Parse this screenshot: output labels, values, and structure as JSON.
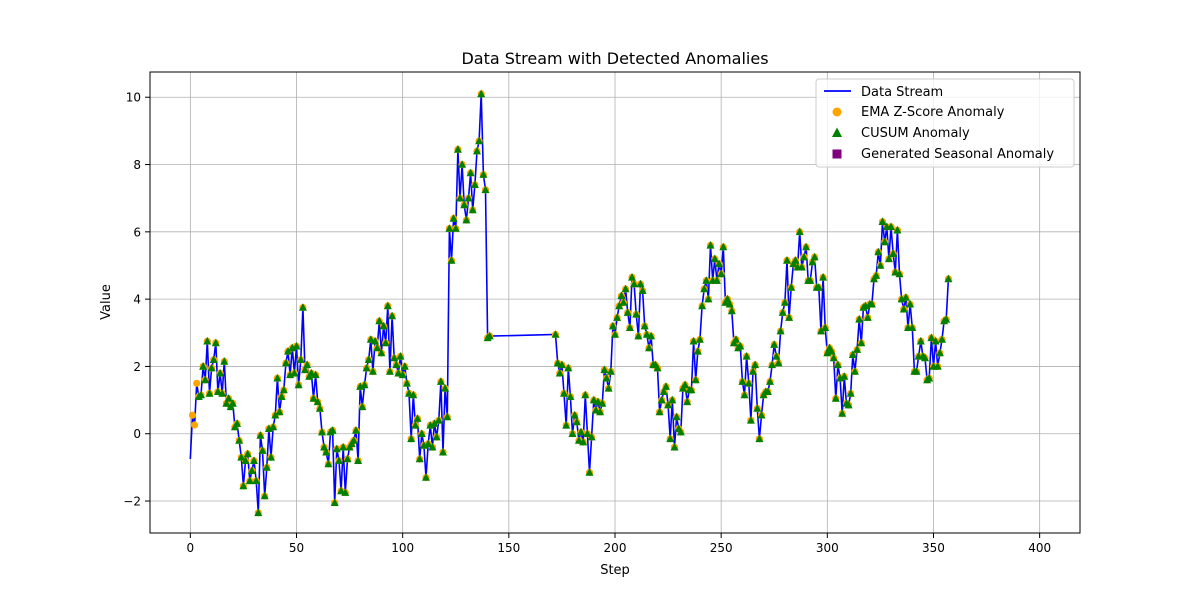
{
  "chart_data": {
    "type": "line",
    "title": "Data Stream with Detected Anomalies",
    "xlabel": "Step",
    "ylabel": "Value",
    "xlim": [
      -19,
      419
    ],
    "ylim": [
      -2.95,
      10.75
    ],
    "xticks": [
      0,
      50,
      100,
      150,
      200,
      250,
      300,
      350,
      400
    ],
    "yticks": [
      -2,
      0,
      2,
      4,
      6,
      8,
      10
    ],
    "grid": true,
    "legend_position": "top-right",
    "colors": {
      "stream": "#0000ff",
      "ema": "#ffa500",
      "cusum": "#008000",
      "seasonal": "#800080",
      "grid": "#b0b0b0"
    },
    "legend": [
      {
        "label": "Data Stream",
        "marker": "line",
        "color": "#0000ff"
      },
      {
        "label": "EMA Z-Score Anomaly",
        "marker": "circle",
        "color": "#ffa500"
      },
      {
        "label": "CUSUM Anomaly",
        "marker": "triangle",
        "color": "#008000"
      },
      {
        "label": "Generated Seasonal Anomaly",
        "marker": "square",
        "color": "#800080"
      }
    ],
    "anomaly_markers": {
      "ema_note": "EMA Z-Score marker drawn at nearly every step",
      "cusum_start_step": 4
    },
    "series": [
      {
        "name": "Data Stream",
        "x_start": 0,
        "x_step": 1,
        "values": [
          -0.75,
          0.55,
          0.26,
          1.5,
          1.1,
          1.15,
          2.0,
          1.6,
          2.75,
          1.2,
          1.95,
          2.2,
          2.7,
          1.25,
          1.8,
          1.2,
          2.15,
          0.9,
          1.05,
          0.8,
          0.9,
          0.2,
          0.3,
          -0.2,
          -0.7,
          -1.55,
          -0.8,
          -0.6,
          -1.4,
          -1.1,
          -0.8,
          -1.4,
          -2.35,
          -0.05,
          -0.5,
          -1.85,
          -1.0,
          0.15,
          -0.7,
          0.2,
          0.55,
          1.65,
          0.65,
          1.1,
          1.3,
          2.1,
          2.45,
          1.75,
          2.55,
          1.8,
          2.6,
          1.45,
          2.2,
          3.75,
          1.9,
          2.05,
          1.7,
          1.8,
          1.05,
          1.75,
          0.95,
          0.75,
          0.05,
          -0.4,
          -0.55,
          -0.9,
          0.05,
          0.1,
          -2.05,
          -0.45,
          -0.8,
          -1.7,
          -0.4,
          -1.75,
          -0.75,
          -0.4,
          -0.3,
          -0.2,
          0.1,
          -0.8,
          1.4,
          0.8,
          1.45,
          1.95,
          2.2,
          2.8,
          1.85,
          2.75,
          2.55,
          3.35,
          2.4,
          3.2,
          2.7,
          3.8,
          1.85,
          3.5,
          2.25,
          2.05,
          1.8,
          2.3,
          1.75,
          2.0,
          1.5,
          1.2,
          -0.15,
          1.15,
          0.25,
          0.45,
          -0.75,
          0.0,
          -0.35,
          -1.3,
          -0.3,
          0.25,
          -0.4,
          0.3,
          -0.1,
          0.4,
          1.55,
          -0.55,
          1.35,
          0.5,
          6.1,
          5.15,
          6.4,
          6.1,
          8.45,
          7.0,
          8.0,
          6.8,
          6.35,
          7.0,
          7.75,
          6.65,
          7.4,
          8.4,
          8.7,
          10.1,
          7.7,
          7.25,
          2.85,
          2.9
        ],
        "segments": [
          {
            "x_start": 172,
            "values": [
              2.95,
              2.1,
              1.8,
              2.05,
              1.2,
              0.25,
              1.95,
              1.1,
              0.0,
              0.55,
              0.35,
              -0.2,
              0.05,
              -0.25,
              1.15,
              0.0,
              -1.15,
              -0.1,
              1.0,
              0.7,
              0.95,
              0.65,
              0.9,
              1.9,
              1.65,
              1.35,
              1.85,
              3.2,
              2.95,
              3.45,
              3.8,
              4.1,
              3.9,
              4.3,
              3.6,
              3.15,
              4.65,
              4.45,
              3.55,
              2.9,
              4.45,
              4.25,
              3.2,
              2.95,
              2.55,
              2.9,
              2.05,
              2.05,
              1.95,
              0.65,
              1.0,
              1.25,
              1.4,
              0.85,
              -0.15,
              1.0,
              -0.4,
              0.5,
              0.15,
              0.05,
              1.35,
              1.45,
              0.95,
              1.3,
              1.3,
              2.75,
              1.6,
              2.45,
              2.8,
              3.8,
              4.3,
              4.55,
              4.0,
              5.6,
              4.55,
              5.2,
              4.55,
              5.05,
              4.75,
              5.55,
              3.9,
              4.0,
              3.85,
              3.65,
              2.7,
              2.8,
              2.55,
              2.6,
              1.55,
              1.15,
              2.3,
              1.5,
              0.4,
              1.85,
              2.05,
              0.75,
              -0.15,
              0.55,
              1.15,
              1.25,
              1.25,
              1.55,
              2.05,
              2.65,
              2.3,
              2.1,
              3.05,
              3.6,
              3.9,
              5.15,
              3.45,
              4.35,
              5.05,
              5.15,
              4.95,
              6.0,
              4.95,
              5.25,
              5.55,
              4.55,
              4.55,
              5.1,
              5.25,
              4.35,
              4.35,
              3.05,
              4.65,
              3.15,
              2.4,
              2.55,
              2.45,
              2.25,
              1.05,
              2.05,
              1.65,
              0.6,
              1.7,
              0.9,
              0.85,
              1.2,
              2.35,
              1.85,
              2.5,
              3.4,
              2.7,
              3.75,
              3.8,
              3.45,
              3.85,
              3.85,
              4.6,
              4.7,
              5.4,
              5.0,
              6.3,
              5.7,
              6.15,
              5.2,
              6.15,
              5.35,
              4.8,
              6.05,
              4.75,
              4.0,
              3.7,
              4.05,
              3.15,
              3.85,
              3.15,
              1.85,
              1.85,
              2.3,
              2.75,
              2.3,
              2.25,
              1.6,
              1.65,
              2.85,
              2.0,
              2.75,
              2.0,
              2.4,
              2.8,
              3.35,
              3.4,
              4.6
            ]
          }
        ]
      }
    ]
  }
}
